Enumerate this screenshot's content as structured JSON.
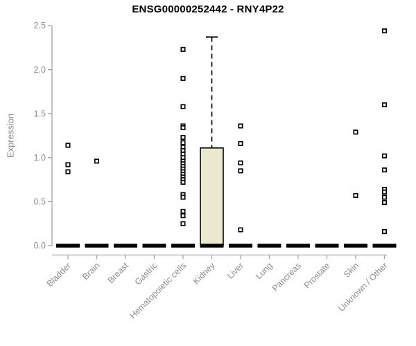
{
  "title": "ENSG00000252442 - RNY4P22",
  "chart_data": {
    "type": "boxplot",
    "title": "ENSG00000252442 - RNY4P22",
    "xlabel": "",
    "ylabel": "Expression",
    "ylim": [
      0.0,
      2.5
    ],
    "yticks": [
      0.0,
      0.5,
      1.0,
      1.5,
      2.0,
      2.5
    ],
    "grid": false,
    "legend": false,
    "categories": [
      "Bladder",
      "Brain",
      "Breast",
      "Gastric",
      "Hematopoietic cells",
      "Kidney",
      "Liver",
      "Lung",
      "Pancreas",
      "Prostate",
      "Skin",
      "Unknown / Other"
    ],
    "boxes": [
      {
        "category": "Bladder",
        "q1": 0,
        "median": 0,
        "q3": 0,
        "whisker_low": 0,
        "whisker_high": 0,
        "outliers": [
          1.14,
          0.92,
          0.84
        ]
      },
      {
        "category": "Brain",
        "q1": 0,
        "median": 0,
        "q3": 0,
        "whisker_low": 0,
        "whisker_high": 0,
        "outliers": [
          0.96
        ]
      },
      {
        "category": "Breast",
        "q1": 0,
        "median": 0,
        "q3": 0,
        "whisker_low": 0,
        "whisker_high": 0,
        "outliers": []
      },
      {
        "category": "Gastric",
        "q1": 0,
        "median": 0,
        "q3": 0,
        "whisker_low": 0,
        "whisker_high": 0,
        "outliers": []
      },
      {
        "category": "Hematopoietic cells",
        "q1": 0,
        "median": 0,
        "q3": 0,
        "whisker_low": 0,
        "whisker_high": 0,
        "outliers": [
          2.23,
          1.9,
          1.58,
          1.36,
          1.34,
          1.23,
          1.17,
          1.12,
          1.08,
          1.04,
          1.0,
          0.96,
          0.93,
          0.9,
          0.87,
          0.84,
          0.81,
          0.78,
          0.75,
          0.72,
          0.58,
          0.55,
          0.39,
          0.34,
          0.25
        ]
      },
      {
        "category": "Kidney",
        "q1": 0,
        "median": 0,
        "q3": 1.11,
        "whisker_low": 0,
        "whisker_high": 2.37,
        "outliers": []
      },
      {
        "category": "Liver",
        "q1": 0,
        "median": 0,
        "q3": 0,
        "whisker_low": 0,
        "whisker_high": 0,
        "outliers": [
          1.36,
          1.16,
          0.94,
          0.85,
          0.18
        ]
      },
      {
        "category": "Lung",
        "q1": 0,
        "median": 0,
        "q3": 0,
        "whisker_low": 0,
        "whisker_high": 0,
        "outliers": []
      },
      {
        "category": "Pancreas",
        "q1": 0,
        "median": 0,
        "q3": 0,
        "whisker_low": 0,
        "whisker_high": 0,
        "outliers": []
      },
      {
        "category": "Prostate",
        "q1": 0,
        "median": 0,
        "q3": 0,
        "whisker_low": 0,
        "whisker_high": 0,
        "outliers": []
      },
      {
        "category": "Skin",
        "q1": 0,
        "median": 0,
        "q3": 0,
        "whisker_low": 0,
        "whisker_high": 0,
        "outliers": [
          1.29,
          0.57
        ]
      },
      {
        "category": "Unknown / Other",
        "q1": 0,
        "median": 0,
        "q3": 0,
        "whisker_low": 0,
        "whisker_high": 0,
        "outliers": [
          2.44,
          1.6,
          1.02,
          0.86,
          0.64,
          0.61,
          0.55,
          0.49,
          0.16
        ]
      }
    ],
    "colors": {
      "box_fill": "#ECE8CD",
      "box_stroke": "#000000",
      "median": "#000000",
      "outlier_stroke": "#000000",
      "outlier_fill": "#FFFFFF",
      "axis": "#A3A3A3",
      "tick_label": "#8C8C8C",
      "title": "#000000",
      "background": "#FFFFFF"
    }
  }
}
